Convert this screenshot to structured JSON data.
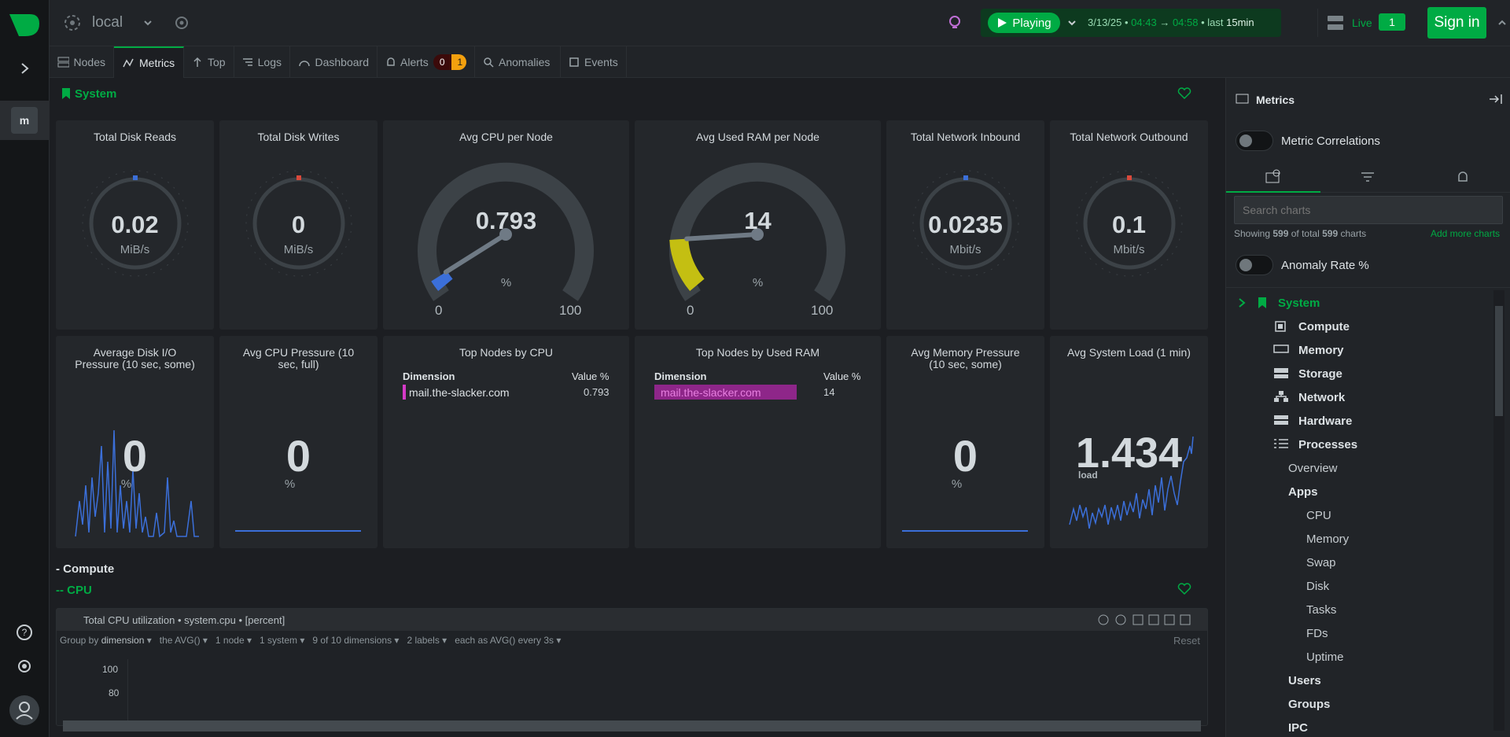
{
  "topbar": {
    "space": "local",
    "playing_label": "Playing",
    "date": "3/13/25",
    "time_from": "04:43",
    "arrow": "→",
    "time_to": "04:58",
    "last_label": "last",
    "last_value": "15min",
    "live_label": "Live",
    "live_count": "1",
    "signin_label": "Sign in"
  },
  "leftrail": {
    "avatar_letter": "m"
  },
  "tabs": [
    {
      "label": "Nodes"
    },
    {
      "label": "Metrics"
    },
    {
      "label": "Top"
    },
    {
      "label": "Logs"
    },
    {
      "label": "Dashboard"
    },
    {
      "label": "Alerts"
    },
    {
      "label": "Anomalies"
    },
    {
      "label": "Events"
    }
  ],
  "alerts": {
    "critical": "0",
    "warning": "1"
  },
  "section": {
    "system": "System",
    "compute": "- Compute",
    "cpu": "-- CPU"
  },
  "gauges": [
    {
      "title": "Total Disk Reads",
      "value": "0.02",
      "unit": "MiB/s"
    },
    {
      "title": "Total Disk Writes",
      "value": "0",
      "unit": "MiB/s"
    },
    {
      "title": "Avg CPU per Node",
      "value": "0.793",
      "unit": "%",
      "min": "0",
      "max": "100",
      "level": 0.793
    },
    {
      "title": "Avg Used RAM per Node",
      "value": "14",
      "unit": "%",
      "min": "0",
      "max": "100",
      "level": 14
    },
    {
      "title": "Total Network Inbound",
      "value": "0.0235",
      "unit": "Mbit/s"
    },
    {
      "title": "Total Network Outbound",
      "value": "0.1",
      "unit": "Mbit/s"
    }
  ],
  "row2": [
    {
      "title": "Average Disk I/O Pressure (10 sec, some)",
      "value": "0",
      "unit": "%"
    },
    {
      "title": "Avg CPU Pressure (10 sec, full)",
      "value": "0",
      "unit": "%"
    },
    {
      "title": "Top Nodes by CPU",
      "dim_header": "Dimension",
      "val_header": "Value %",
      "row_name": "mail.the-slacker.com",
      "row_value": "0.793"
    },
    {
      "title": "Top Nodes by Used RAM",
      "dim_header": "Dimension",
      "val_header": "Value %",
      "row_name": "mail.the-slacker.com",
      "row_value": "14"
    },
    {
      "title": "Avg Memory Pressure (10 sec, some)",
      "value": "0",
      "unit": "%"
    },
    {
      "title": "Avg System Load (1 min)",
      "value": "1.434",
      "unit": "load"
    }
  ],
  "cpuchart": {
    "title": "Total CPU utilization",
    "context": "system.cpu",
    "units": "[percent]",
    "group_by": "Group by",
    "group_by_value": "dimension",
    "agg": "the AVG()",
    "nodes": "1 node",
    "systems": "1 system",
    "dims": "9 of 10 dimensions",
    "labels": "2 labels",
    "each": "each as AVG() every 3s",
    "reset": "Reset",
    "y100": "100",
    "y80": "80"
  },
  "right": {
    "title": "Metrics",
    "correlations": "Metric Correlations",
    "search_placeholder": "Search charts",
    "showing_prefix": "Showing",
    "showing_count": "599",
    "showing_mid": "of total",
    "showing_total": "599",
    "showing_suffix": "charts",
    "add_more": "Add more charts",
    "anomaly": "Anomaly Rate %",
    "tree": {
      "system": "System",
      "compute": "Compute",
      "memory": "Memory",
      "storage": "Storage",
      "network": "Network",
      "hardware": "Hardware",
      "processes": "Processes",
      "overview": "Overview",
      "apps": "Apps",
      "cpu": "CPU",
      "mem": "Memory",
      "swap": "Swap",
      "disk": "Disk",
      "tasks": "Tasks",
      "fds": "FDs",
      "uptime": "Uptime",
      "users": "Users",
      "groups": "Groups",
      "ipc": "IPC"
    }
  }
}
